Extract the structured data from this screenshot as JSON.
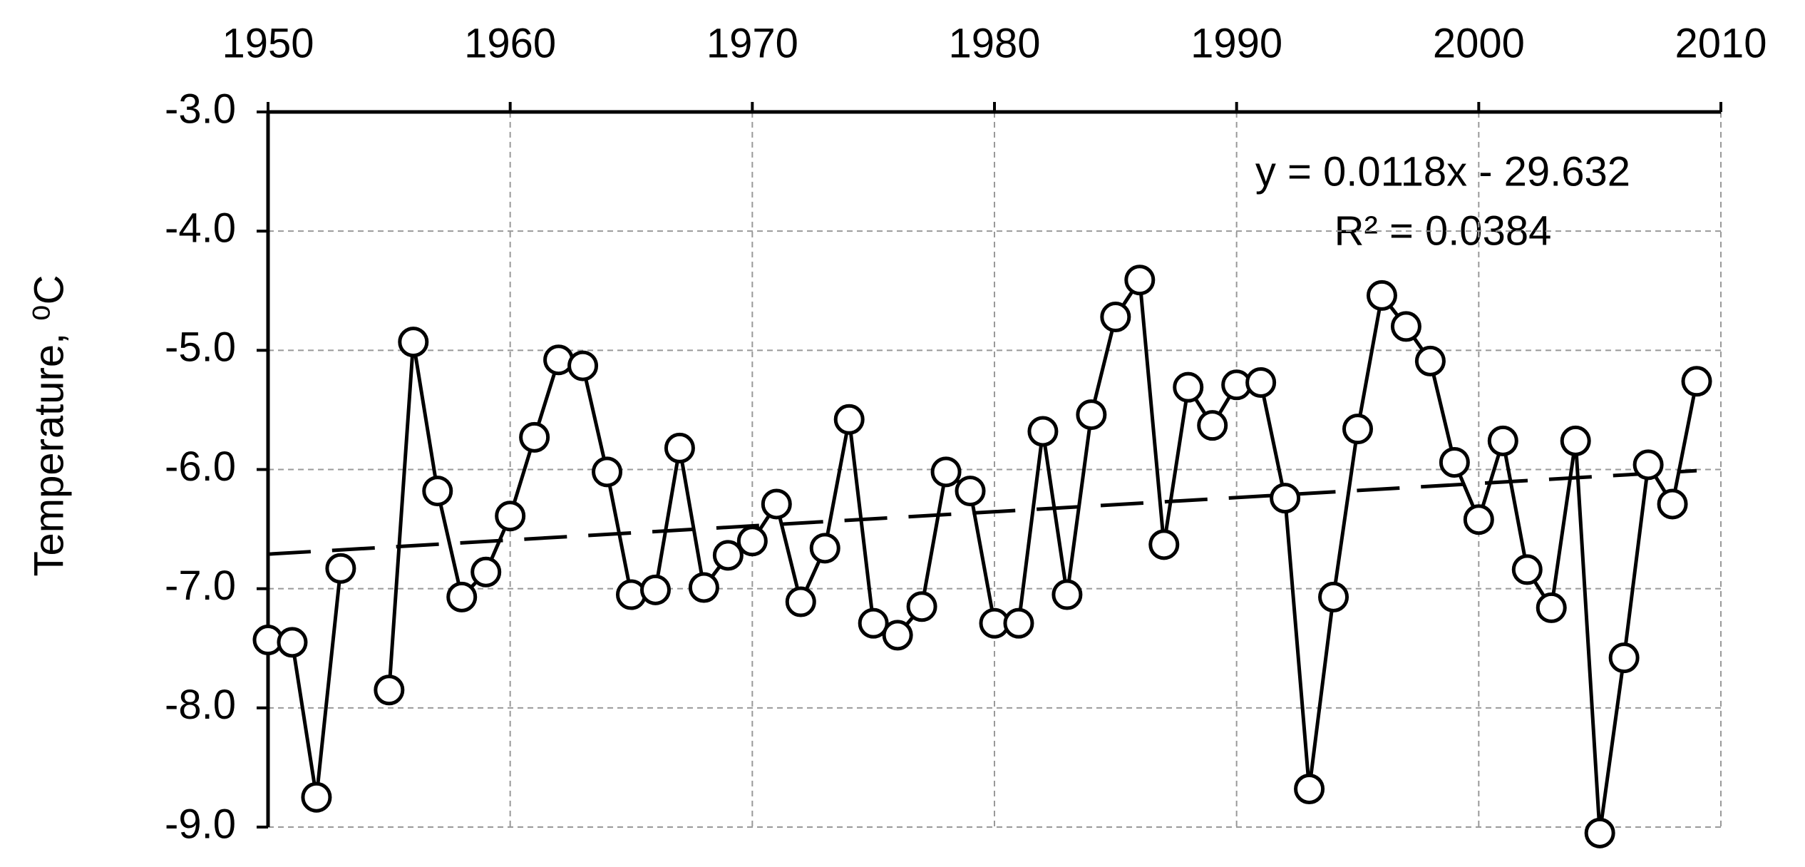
{
  "chart_data": {
    "type": "line",
    "y_label": "Temperature, ⁰C",
    "annotations": [
      "y = 0.0118x - 29.632",
      "R² = 0.0384"
    ],
    "x": [
      1950,
      1951,
      1952,
      1953,
      1954,
      1955,
      1956,
      1957,
      1958,
      1959,
      1960,
      1961,
      1962,
      1963,
      1964,
      1965,
      1966,
      1967,
      1968,
      1969,
      1970,
      1971,
      1972,
      1973,
      1974,
      1975,
      1976,
      1977,
      1978,
      1979,
      1980,
      1981,
      1982,
      1983,
      1984,
      1985,
      1986,
      1987,
      1988,
      1989,
      1990,
      1991,
      1992,
      1993,
      1994,
      1995,
      1996,
      1997,
      1998,
      1999,
      2000,
      2001,
      2002,
      2003,
      2004,
      2005,
      2006,
      2007,
      2008,
      2009
    ],
    "series": [
      {
        "name": "Temperature",
        "color": "#000000",
        "values": [
          -7.43,
          -7.45,
          -8.75,
          -6.83,
          null,
          -7.85,
          -4.93,
          -6.18,
          -7.07,
          -6.86,
          -6.39,
          -5.73,
          -5.08,
          -5.13,
          -6.02,
          -7.05,
          -7.01,
          -5.82,
          -6.99,
          -6.72,
          -6.6,
          -6.29,
          -7.11,
          -6.66,
          -5.58,
          -7.29,
          -7.39,
          -7.15,
          -6.02,
          -6.18,
          -7.29,
          -7.29,
          -5.68,
          -7.05,
          -5.54,
          -4.72,
          -4.41,
          -6.63,
          -5.31,
          -5.63,
          -5.29,
          -5.27,
          -6.24,
          -8.68,
          -7.07,
          -5.66,
          -4.54,
          -4.8,
          -5.09,
          -5.94,
          -6.42,
          -5.76,
          -6.84,
          -7.16,
          -5.76,
          -9.05,
          -7.58,
          -5.96,
          -6.29,
          -5.26
        ]
      }
    ],
    "trendline": {
      "x": [
        1950,
        2009
      ],
      "values": [
        -6.71,
        -6.01
      ]
    },
    "xlim": [
      1950,
      2010
    ],
    "xticks": [
      1950,
      1960,
      1970,
      1980,
      1990,
      2000,
      2010
    ],
    "ylim": [
      -9,
      -3
    ],
    "yticks": [
      {
        "value": -3,
        "label": "-3.0"
      },
      {
        "value": -4,
        "label": "-4.0"
      },
      {
        "value": -5,
        "label": "-5.0"
      },
      {
        "value": -6,
        "label": "-6.0"
      },
      {
        "value": -7,
        "label": "-7.0"
      },
      {
        "value": -8,
        "label": "-8.0"
      },
      {
        "value": -9,
        "label": "-9.0"
      }
    ],
    "grid": true
  }
}
